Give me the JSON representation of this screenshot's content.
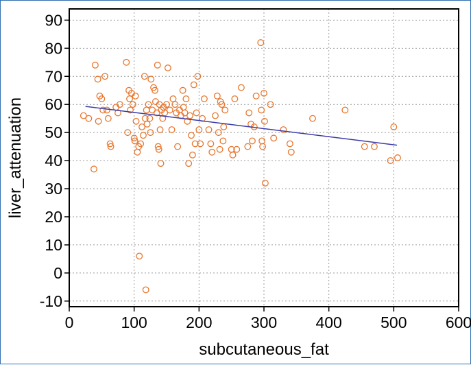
{
  "chart_data": {
    "type": "scatter",
    "xlabel": "subcutaneous_fat",
    "ylabel": "liver_attenuation",
    "xlim": [
      0,
      600
    ],
    "ylim": [
      -12,
      94
    ],
    "xticks": [
      "0",
      "100",
      "200",
      "300",
      "400",
      "500",
      "600"
    ],
    "yticks": [
      "-10",
      "0",
      "10",
      "20",
      "30",
      "40",
      "50",
      "60",
      "70",
      "80",
      "90"
    ],
    "grid": true,
    "marker_color": "#e8772e",
    "line_color": "#3a3aa8",
    "trendline": {
      "x": [
        25,
        505
      ],
      "y": [
        59.3,
        45.5
      ]
    },
    "points": [
      {
        "x": 22,
        "y": 56
      },
      {
        "x": 30,
        "y": 55
      },
      {
        "x": 38,
        "y": 37
      },
      {
        "x": 40,
        "y": 74
      },
      {
        "x": 44,
        "y": 69
      },
      {
        "x": 45,
        "y": 54
      },
      {
        "x": 47,
        "y": 63
      },
      {
        "x": 50,
        "y": 62
      },
      {
        "x": 52,
        "y": 58
      },
      {
        "x": 55,
        "y": 70
      },
      {
        "x": 58,
        "y": 58
      },
      {
        "x": 60,
        "y": 55
      },
      {
        "x": 63,
        "y": 46
      },
      {
        "x": 64,
        "y": 45
      },
      {
        "x": 72,
        "y": 59
      },
      {
        "x": 75,
        "y": 57
      },
      {
        "x": 78,
        "y": 60
      },
      {
        "x": 88,
        "y": 75
      },
      {
        "x": 90,
        "y": 50
      },
      {
        "x": 92,
        "y": 65
      },
      {
        "x": 93,
        "y": 62
      },
      {
        "x": 94,
        "y": 58
      },
      {
        "x": 96,
        "y": 64
      },
      {
        "x": 98,
        "y": 60
      },
      {
        "x": 100,
        "y": 48
      },
      {
        "x": 101,
        "y": 47
      },
      {
        "x": 102,
        "y": 63
      },
      {
        "x": 103,
        "y": 54
      },
      {
        "x": 105,
        "y": 43
      },
      {
        "x": 107,
        "y": 45
      },
      {
        "x": 108,
        "y": 6
      },
      {
        "x": 110,
        "y": 46
      },
      {
        "x": 112,
        "y": 52
      },
      {
        "x": 114,
        "y": 49
      },
      {
        "x": 116,
        "y": 70
      },
      {
        "x": 117,
        "y": 55
      },
      {
        "x": 118,
        "y": -6
      },
      {
        "x": 119,
        "y": 58
      },
      {
        "x": 120,
        "y": 53
      },
      {
        "x": 122,
        "y": 60
      },
      {
        "x": 124,
        "y": 55
      },
      {
        "x": 125,
        "y": 50
      },
      {
        "x": 126,
        "y": 69
      },
      {
        "x": 128,
        "y": 58
      },
      {
        "x": 130,
        "y": 66
      },
      {
        "x": 132,
        "y": 65
      },
      {
        "x": 133,
        "y": 61
      },
      {
        "x": 135,
        "y": 57
      },
      {
        "x": 136,
        "y": 74
      },
      {
        "x": 137,
        "y": 45
      },
      {
        "x": 138,
        "y": 44
      },
      {
        "x": 139,
        "y": 60
      },
      {
        "x": 140,
        "y": 51
      },
      {
        "x": 141,
        "y": 39
      },
      {
        "x": 142,
        "y": 58
      },
      {
        "x": 144,
        "y": 55
      },
      {
        "x": 145,
        "y": 59
      },
      {
        "x": 147,
        "y": 57
      },
      {
        "x": 150,
        "y": 60
      },
      {
        "x": 152,
        "y": 73
      },
      {
        "x": 155,
        "y": 58
      },
      {
        "x": 158,
        "y": 51
      },
      {
        "x": 160,
        "y": 62
      },
      {
        "x": 163,
        "y": 60
      },
      {
        "x": 165,
        "y": 57
      },
      {
        "x": 167,
        "y": 45
      },
      {
        "x": 170,
        "y": 58
      },
      {
        "x": 172,
        "y": 56
      },
      {
        "x": 175,
        "y": 65
      },
      {
        "x": 176,
        "y": 59
      },
      {
        "x": 178,
        "y": 57
      },
      {
        "x": 180,
        "y": 62
      },
      {
        "x": 182,
        "y": 54
      },
      {
        "x": 184,
        "y": 39
      },
      {
        "x": 186,
        "y": 56
      },
      {
        "x": 188,
        "y": 49
      },
      {
        "x": 190,
        "y": 42
      },
      {
        "x": 192,
        "y": 67
      },
      {
        "x": 194,
        "y": 46
      },
      {
        "x": 196,
        "y": 57
      },
      {
        "x": 198,
        "y": 70
      },
      {
        "x": 200,
        "y": 51
      },
      {
        "x": 202,
        "y": 46
      },
      {
        "x": 205,
        "y": 55
      },
      {
        "x": 208,
        "y": 62
      },
      {
        "x": 215,
        "y": 51
      },
      {
        "x": 218,
        "y": 46
      },
      {
        "x": 220,
        "y": 43
      },
      {
        "x": 225,
        "y": 56
      },
      {
        "x": 228,
        "y": 63
      },
      {
        "x": 230,
        "y": 50
      },
      {
        "x": 232,
        "y": 44
      },
      {
        "x": 233,
        "y": 61
      },
      {
        "x": 235,
        "y": 60
      },
      {
        "x": 237,
        "y": 47
      },
      {
        "x": 238,
        "y": 52
      },
      {
        "x": 240,
        "y": 58
      },
      {
        "x": 250,
        "y": 44
      },
      {
        "x": 252,
        "y": 42
      },
      {
        "x": 255,
        "y": 62
      },
      {
        "x": 258,
        "y": 44
      },
      {
        "x": 265,
        "y": 66
      },
      {
        "x": 275,
        "y": 45
      },
      {
        "x": 277,
        "y": 57
      },
      {
        "x": 280,
        "y": 53
      },
      {
        "x": 282,
        "y": 47
      },
      {
        "x": 285,
        "y": 52
      },
      {
        "x": 288,
        "y": 63
      },
      {
        "x": 295,
        "y": 82
      },
      {
        "x": 296,
        "y": 58
      },
      {
        "x": 297,
        "y": 47
      },
      {
        "x": 298,
        "y": 45
      },
      {
        "x": 300,
        "y": 64
      },
      {
        "x": 301,
        "y": 54
      },
      {
        "x": 302,
        "y": 32
      },
      {
        "x": 310,
        "y": 60
      },
      {
        "x": 315,
        "y": 48
      },
      {
        "x": 330,
        "y": 51
      },
      {
        "x": 340,
        "y": 46
      },
      {
        "x": 342,
        "y": 43
      },
      {
        "x": 375,
        "y": 55
      },
      {
        "x": 425,
        "y": 58
      },
      {
        "x": 455,
        "y": 45
      },
      {
        "x": 470,
        "y": 45
      },
      {
        "x": 495,
        "y": 40
      },
      {
        "x": 500,
        "y": 52
      },
      {
        "x": 506,
        "y": 41
      }
    ]
  }
}
